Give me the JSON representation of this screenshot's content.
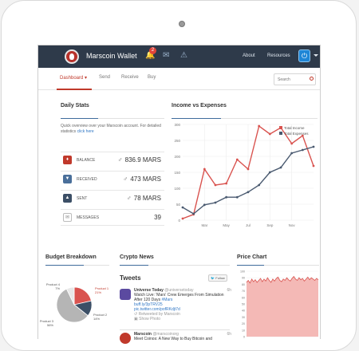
{
  "topbar": {
    "brand": "Marscoin Wallet",
    "notif_count": "2",
    "links": [
      "About",
      "Resources"
    ],
    "icons": [
      "bell-icon",
      "envelope-icon",
      "warning-icon",
      "power-icon"
    ]
  },
  "nav": {
    "items": [
      "Dashboard",
      "Send",
      "Receive",
      "Buy"
    ],
    "active": "Dashboard",
    "search_placeholder": "Search"
  },
  "daily_stats": {
    "title": "Daily Stats",
    "desc": "Quick overview over your Marscoin account. For detailed statistics",
    "desc_link": "click here",
    "rows": [
      {
        "label": "BALANCE",
        "value": "836.9 MARS",
        "currency": "♂",
        "color": "#c0392b",
        "icon": "mars-icon"
      },
      {
        "label": "RECEIVED",
        "value": "473 MARS",
        "currency": "♂",
        "color": "#4a6f9a",
        "icon": "download-icon"
      },
      {
        "label": "SENT",
        "value": "78 MARS",
        "currency": "♂",
        "color": "#3c4f66",
        "icon": "upload-icon"
      },
      {
        "label": "MESSAGES",
        "value": "39",
        "currency": "",
        "color": "#ffffff",
        "icon": "mail-icon"
      }
    ]
  },
  "income_chart": {
    "title": "Income vs Expenses",
    "chart_data": {
      "type": "line",
      "x": [
        0,
        1,
        2,
        3,
        4,
        5,
        6,
        7,
        8,
        9,
        10,
        11,
        12
      ],
      "xticks": [
        "Mar",
        "May",
        "Jul",
        "Sep",
        "Nov"
      ],
      "ylim": [
        0,
        300
      ],
      "yticks": [
        "0",
        "50",
        "100",
        "150",
        "200",
        "250",
        "300"
      ],
      "legend_position": "top-right",
      "grid": true,
      "series": [
        {
          "name": "Total Income",
          "color": "#d9534f",
          "values": [
            5,
            18,
            160,
            110,
            115,
            190,
            160,
            295,
            270,
            290,
            240,
            265,
            170
          ]
        },
        {
          "name": "Total Expenses",
          "color": "#4a5a70",
          "values": [
            40,
            20,
            48,
            55,
            72,
            72,
            88,
            110,
            150,
            165,
            210,
            220,
            230
          ]
        }
      ]
    }
  },
  "budget": {
    "title": "Budget Breakdown",
    "chart_data": {
      "type": "pie",
      "labels": [
        "Product 1",
        "Product 2",
        "Product 3",
        "Product 4"
      ],
      "values": [
        21,
        14,
        56,
        7
      ],
      "percents": [
        "21%",
        "14%",
        "56%",
        "7%"
      ],
      "colors": [
        "#d9534f",
        "#3c4f66",
        "#b5b5b5",
        "#e8e8e8"
      ]
    }
  },
  "crypto_news": {
    "title": "Crypto News",
    "tweets_title": "Tweets",
    "follow_label": "Follow",
    "tweets": [
      {
        "name": "Universe Today",
        "handle": "@universetoday",
        "time": "6h",
        "text": "Watch Live: 'Mars' Crew Emerges From Simulation After 120 Days",
        "tag": "#Mars",
        "link": "buff.ly/3pTRV25",
        "link2": "pic.twitter.com/pofRKdjt7d",
        "retweet": "Retweeted by Marscoin",
        "media": "Show Photo"
      },
      {
        "name": "Marscoin",
        "handle": "@marscoinorg",
        "time": "6h",
        "text": "Meet Coinos: A New Way to Buy Bitcoin and"
      }
    ]
  },
  "price_chart": {
    "title": "Price Chart",
    "chart_data": {
      "type": "area",
      "ylim": [
        0,
        100
      ],
      "yticks": [
        "0",
        "10",
        "20",
        "30",
        "40",
        "50",
        "60",
        "70",
        "80",
        "90",
        "100"
      ],
      "color": "#d9534f",
      "values": [
        83,
        86,
        82,
        88,
        84,
        87,
        83,
        86,
        89,
        84,
        88,
        85,
        90,
        86,
        83,
        88,
        85,
        89,
        91,
        86,
        84,
        88,
        86,
        90,
        87,
        85,
        89,
        92,
        88,
        86,
        90,
        87,
        89,
        85,
        88,
        91,
        87,
        90,
        88,
        86,
        89,
        87
      ]
    }
  }
}
